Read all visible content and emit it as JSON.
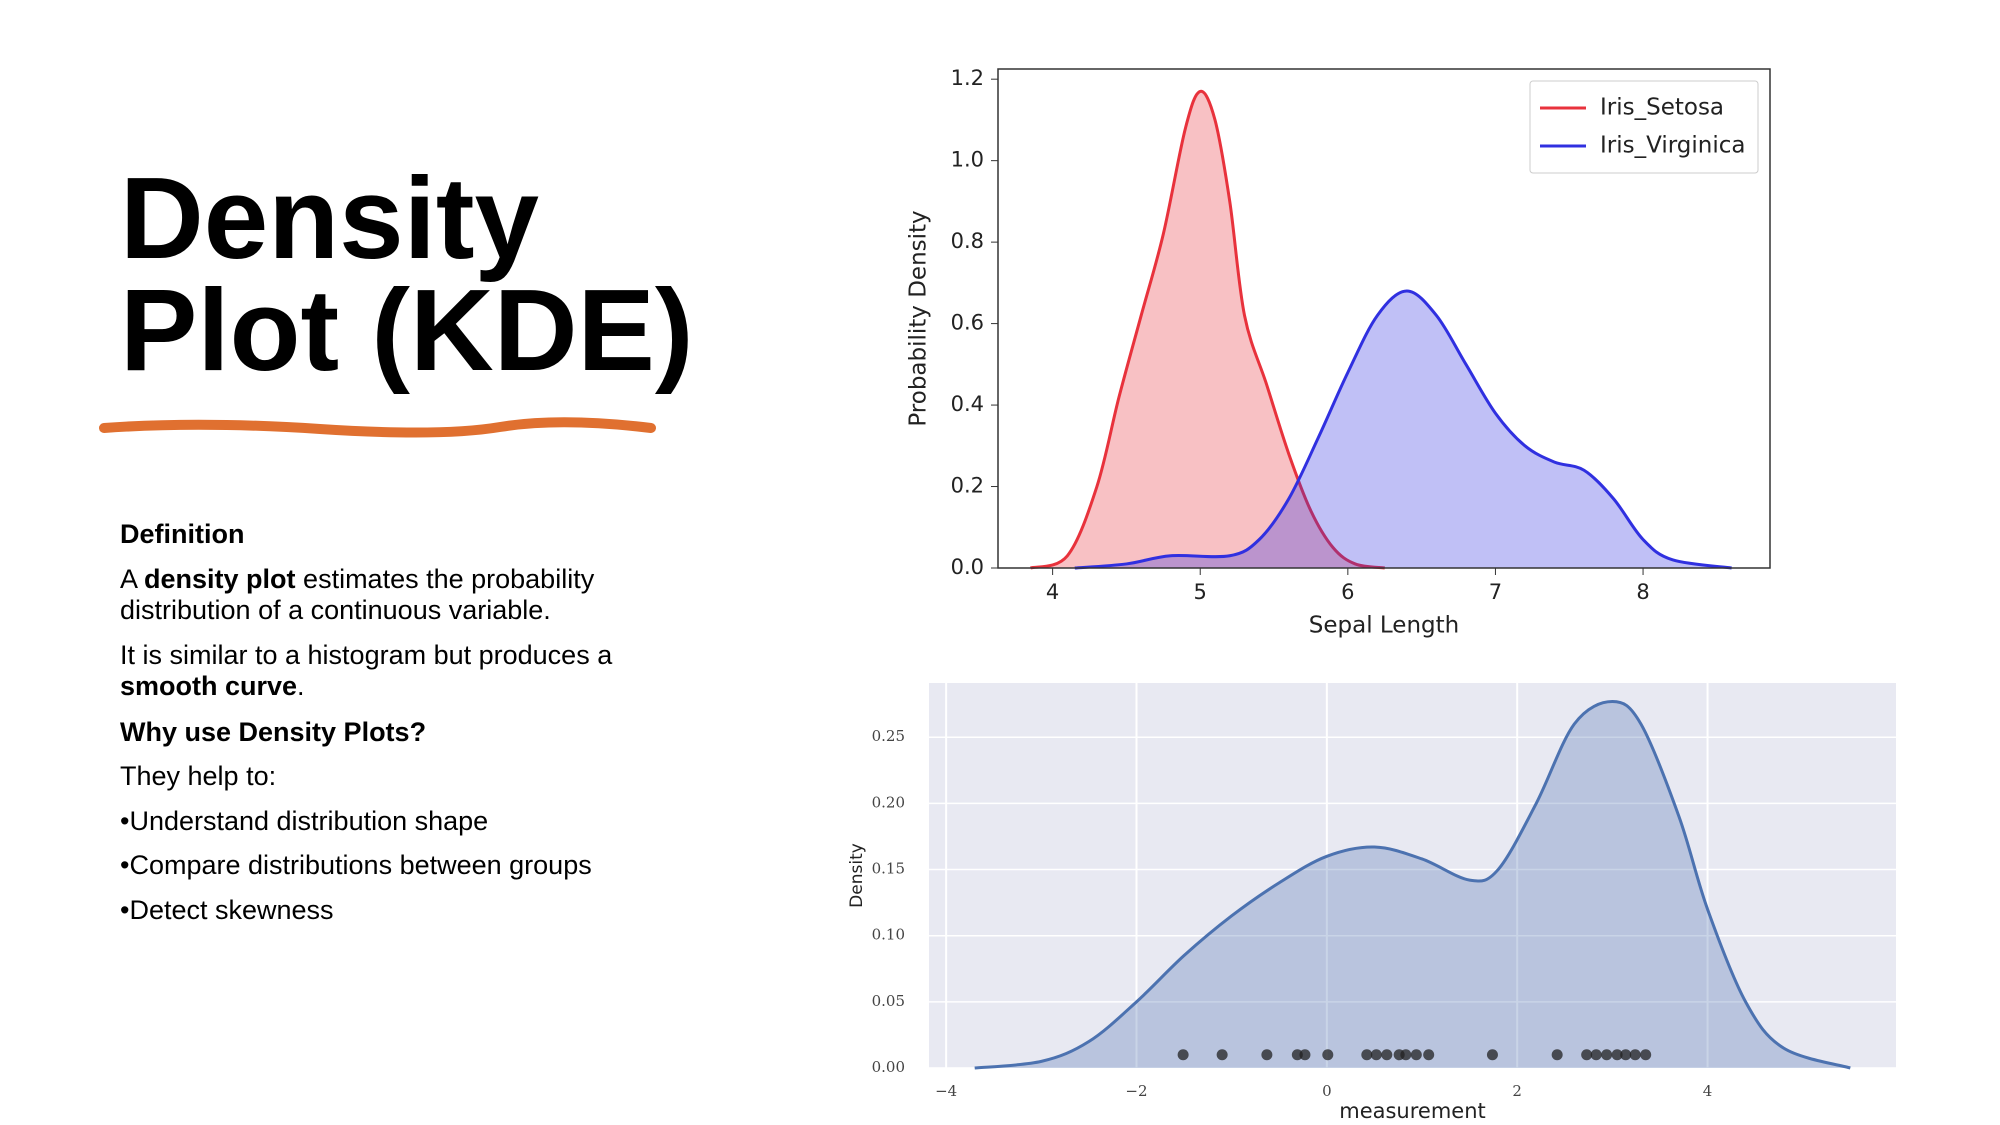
{
  "text": {
    "title_lines": [
      "Density",
      "Plot (KDE)"
    ],
    "definition_heading": "Definition",
    "paragraphs": [
      {
        "before": "A ",
        "bold": "density plot",
        "after": " estimates the probability distribution of a continuous variable."
      },
      {
        "before": "It is similar to a histogram but produces a ",
        "bold": "smooth curve",
        "after": "."
      }
    ],
    "why_heading": "Why use Density Plots?",
    "intro": "They help to:",
    "bullets": [
      "•Understand distribution shape",
      "•Compare distributions between groups",
      "•Detect skewness"
    ]
  },
  "chart_data": [
    {
      "type": "kde",
      "xlabel": "Sepal Length",
      "ylabel": "Probability Density",
      "xlim": [
        3.63,
        8.86
      ],
      "ylim": [
        0,
        1.225
      ],
      "xticks": [
        4,
        5,
        6,
        7,
        8
      ],
      "yticks": [
        {
          "value": 0,
          "label": "0.0"
        },
        0.2,
        0.4,
        0.6,
        0.8,
        {
          "value": 1,
          "label": "1.0"
        },
        1.2
      ],
      "grid": false,
      "legend": "upper right",
      "series": [
        {
          "name": "Iris_Setosa",
          "color": "#e8323c",
          "x": [
            3.85,
            4.1,
            4.3,
            4.45,
            4.6,
            4.75,
            4.9,
            5.0,
            5.1,
            5.2,
            5.3,
            5.45,
            5.6,
            5.75,
            5.9,
            6.05,
            6.25
          ],
          "values": [
            0,
            0.03,
            0.2,
            0.42,
            0.62,
            0.82,
            1.08,
            1.17,
            1.1,
            0.9,
            0.62,
            0.45,
            0.28,
            0.14,
            0.05,
            0.01,
            0
          ]
        },
        {
          "name": "Iris_Virginica",
          "color": "#3030e0",
          "x": [
            4.15,
            4.5,
            4.8,
            5.2,
            5.4,
            5.6,
            5.8,
            6.0,
            6.2,
            6.4,
            6.6,
            6.8,
            7.0,
            7.2,
            7.4,
            7.6,
            7.8,
            8.0,
            8.2,
            8.6
          ],
          "values": [
            0,
            0.01,
            0.03,
            0.03,
            0.07,
            0.17,
            0.32,
            0.48,
            0.62,
            0.68,
            0.62,
            0.5,
            0.38,
            0.3,
            0.26,
            0.24,
            0.17,
            0.07,
            0.02,
            0
          ]
        }
      ]
    },
    {
      "type": "kde",
      "xlabel": "measurement",
      "ylabel": "Density",
      "xlim": [
        -4.18,
        5.98
      ],
      "ylim": [
        0,
        0.291
      ],
      "xticks": [
        {
          "value": -4,
          "label": "−4"
        },
        {
          "value": -2,
          "label": "−2"
        },
        0,
        2,
        4
      ],
      "yticks": [
        {
          "value": 0,
          "label": "0.00"
        },
        {
          "value": 0.05,
          "label": "0.05"
        },
        {
          "value": 0.1,
          "label": "0.10"
        },
        {
          "value": 0.15,
          "label": "0.15"
        },
        {
          "value": 0.2,
          "label": "0.20"
        },
        {
          "value": 0.25,
          "label": "0.25"
        }
      ],
      "grid": true,
      "background": "#e8e9f2",
      "series": [
        {
          "type": "area",
          "color": "#4c72b0",
          "x": [
            -3.7,
            -3,
            -2.5,
            -2,
            -1.5,
            -1,
            -0.5,
            0,
            0.5,
            1,
            1.5,
            1.8,
            2.2,
            2.6,
            3,
            3.3,
            3.7,
            4,
            4.4,
            4.8,
            5.5
          ],
          "values": [
            0,
            0.005,
            0.02,
            0.05,
            0.085,
            0.115,
            0.14,
            0.16,
            0.167,
            0.158,
            0.142,
            0.15,
            0.2,
            0.26,
            0.277,
            0.26,
            0.19,
            0.12,
            0.05,
            0.015,
            0
          ]
        },
        {
          "type": "scatter",
          "color": "#222222",
          "x": [
            -1.51,
            -1.1,
            -0.63,
            -0.31,
            -0.23,
            0.01,
            0.42,
            0.52,
            0.63,
            0.76,
            0.83,
            0.94,
            1.07,
            1.74,
            2.42,
            2.73,
            2.83,
            2.94,
            3.05,
            3.14,
            3.24,
            3.35
          ],
          "values": [
            0.01,
            0.01,
            0.01,
            0.01,
            0.01,
            0.01,
            0.01,
            0.01,
            0.01,
            0.01,
            0.01,
            0.01,
            0.01,
            0.01,
            0.01,
            0.01,
            0.01,
            0.01,
            0.01,
            0.01,
            0.01,
            0.01
          ]
        }
      ]
    }
  ]
}
